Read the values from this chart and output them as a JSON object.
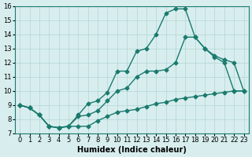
{
  "line1_x": [
    0,
    1,
    2,
    3,
    4,
    5,
    6,
    7,
    8,
    9,
    10,
    11,
    12,
    13,
    14,
    15,
    16,
    17,
    18,
    19,
    20,
    21,
    22,
    23
  ],
  "line1_y": [
    9.0,
    8.8,
    8.3,
    7.5,
    7.4,
    7.5,
    7.5,
    7.5,
    7.9,
    8.2,
    8.5,
    8.6,
    8.7,
    8.9,
    9.1,
    9.2,
    9.4,
    9.5,
    9.6,
    9.7,
    9.8,
    9.9,
    10.0,
    10.0
  ],
  "line2_x": [
    0,
    1,
    2,
    3,
    4,
    5,
    6,
    7,
    8,
    9,
    10,
    11,
    12,
    13,
    14,
    15,
    16,
    17,
    18,
    19,
    20,
    21,
    22,
    23
  ],
  "line2_y": [
    9.0,
    8.8,
    8.3,
    7.5,
    7.4,
    7.5,
    8.2,
    8.3,
    8.6,
    9.3,
    10.0,
    10.2,
    11.0,
    11.4,
    11.4,
    11.5,
    12.0,
    13.8,
    13.8,
    13.0,
    12.5,
    12.2,
    12.0,
    10.0
  ],
  "line3_x": [
    0,
    1,
    2,
    3,
    4,
    5,
    6,
    7,
    8,
    9,
    10,
    11,
    12,
    13,
    14,
    15,
    16,
    17,
    18,
    19,
    20,
    21,
    22,
    23
  ],
  "line3_y": [
    9.0,
    8.8,
    8.3,
    7.5,
    7.4,
    7.5,
    8.3,
    9.1,
    9.3,
    9.9,
    11.4,
    11.4,
    12.8,
    13.0,
    14.0,
    15.5,
    15.8,
    15.8,
    13.8,
    13.0,
    12.4,
    12.0,
    10.0,
    10.0
  ],
  "color": "#1a7a6e",
  "bg_color": "#d8eeee",
  "grid_color": "#b8d8d8",
  "xlabel": "Humidex (Indice chaleur)",
  "xlim": [
    -0.5,
    23.5
  ],
  "ylim": [
    7,
    16
  ],
  "yticks": [
    7,
    8,
    9,
    10,
    11,
    12,
    13,
    14,
    15,
    16
  ],
  "xticks": [
    0,
    1,
    2,
    3,
    4,
    5,
    6,
    7,
    8,
    9,
    10,
    11,
    12,
    13,
    14,
    15,
    16,
    17,
    18,
    19,
    20,
    21,
    22,
    23
  ],
  "xtick_labels": [
    "0",
    "1",
    "2",
    "3",
    "4",
    "5",
    "6",
    "7",
    "8",
    "9",
    "10",
    "11",
    "12",
    "13",
    "14",
    "15",
    "16",
    "17",
    "18",
    "19",
    "20",
    "21",
    "22",
    "23"
  ],
  "marker": "D",
  "markersize": 2.5,
  "linewidth": 1.0,
  "fontsize_label": 7.0,
  "fontsize_tick": 6.0
}
